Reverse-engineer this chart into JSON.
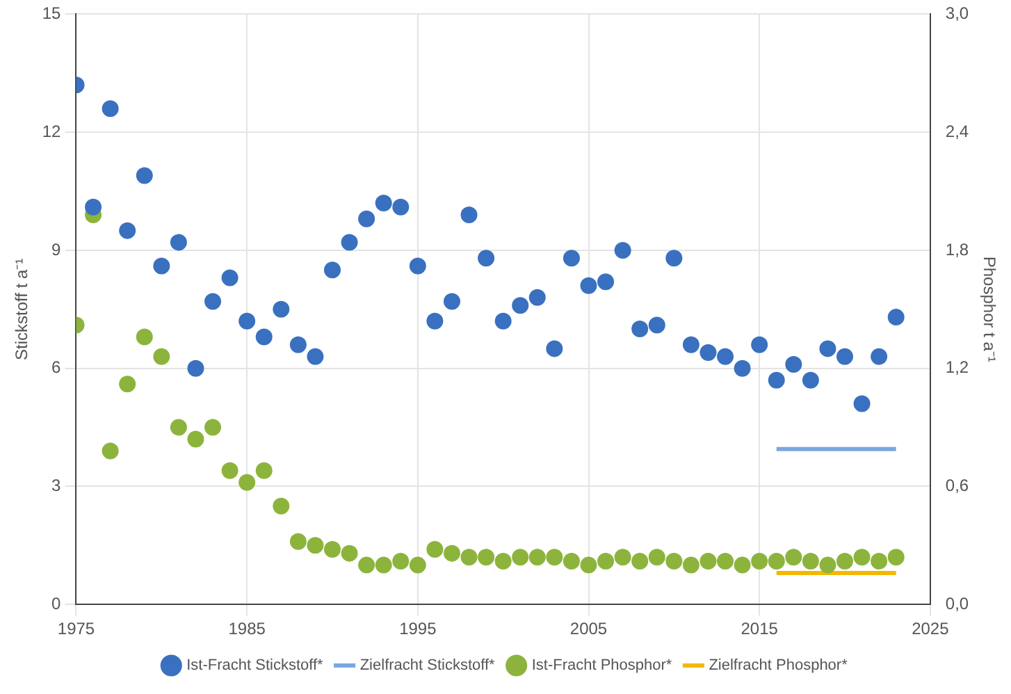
{
  "chart_data": {
    "type": "scatter",
    "ylabel": "Stickstoff t a⁻¹",
    "y2label": "Phosphor t a⁻¹",
    "xlim": [
      1975,
      2025
    ],
    "xticks": [
      1975,
      1985,
      1995,
      2005,
      2015,
      2025
    ],
    "ylim": [
      0,
      15
    ],
    "yticks": [
      0,
      3,
      6,
      9,
      12,
      15
    ],
    "y2lim": [
      0,
      3
    ],
    "y2ticks": [
      {
        "value": 0,
        "label": "0,0"
      },
      {
        "value": 0.6,
        "label": "0,6"
      },
      {
        "value": 1.2,
        "label": "1,2"
      },
      {
        "value": 1.8,
        "label": "1,8"
      },
      {
        "value": 2.4,
        "label": "2,4"
      },
      {
        "value": 3,
        "label": "3,0"
      }
    ],
    "grid": true,
    "legend": "bottom",
    "marker": "circle",
    "series": [
      {
        "name": "Ist-Fracht Stickstoff*",
        "color": "#3a70c0",
        "x": [
          1975,
          1976,
          1977,
          1978,
          1979,
          1980,
          1981,
          1982,
          1983,
          1984,
          1985,
          1986,
          1987,
          1988,
          1989,
          1990,
          1991,
          1992,
          1993,
          1994,
          1995,
          1996,
          1997,
          1998,
          1999,
          2000,
          2001,
          2002,
          2003,
          2004,
          2005,
          2006,
          2007,
          2008,
          2009,
          2010,
          2011,
          2012,
          2013,
          2014,
          2015,
          2016,
          2017,
          2018,
          2019,
          2020,
          2021,
          2022,
          2023
        ],
        "values": [
          13.2,
          10.1,
          12.6,
          9.5,
          10.9,
          8.6,
          9.2,
          6.0,
          7.7,
          8.3,
          7.2,
          6.8,
          7.5,
          6.6,
          6.3,
          8.5,
          9.2,
          9.8,
          10.2,
          10.1,
          8.6,
          7.2,
          7.7,
          9.9,
          8.8,
          7.2,
          7.6,
          7.8,
          6.5,
          8.8,
          8.1,
          8.2,
          9.0,
          7.0,
          7.1,
          8.8,
          6.6,
          6.4,
          6.3,
          6.0,
          6.6,
          5.7,
          6.1,
          5.7,
          6.5,
          6.3,
          5.1,
          6.3,
          7.3
        ]
      },
      {
        "name": "Zielfracht Stickstoff*",
        "type": "line",
        "marker": "none",
        "color": "#7aa7e0",
        "x": [
          2016,
          2023
        ],
        "values": [
          3.95,
          3.95
        ]
      },
      {
        "name": "Ist-Fracht Phosphor*",
        "color": "#8cb43c",
        "axis": "y2",
        "x": [
          1975,
          1976,
          1977,
          1978,
          1979,
          1980,
          1981,
          1982,
          1983,
          1984,
          1985,
          1986,
          1987,
          1988,
          1989,
          1990,
          1991,
          1992,
          1993,
          1994,
          1995,
          1996,
          1997,
          1998,
          1999,
          2000,
          2001,
          2002,
          2003,
          2004,
          2005,
          2006,
          2007,
          2008,
          2009,
          2010,
          2011,
          2012,
          2013,
          2014,
          2015,
          2016,
          2017,
          2018,
          2019,
          2020,
          2021,
          2022,
          2023
        ],
        "values": [
          1.42,
          1.98,
          0.78,
          1.12,
          1.36,
          1.26,
          0.9,
          0.84,
          0.9,
          0.68,
          0.62,
          0.68,
          0.5,
          0.32,
          0.3,
          0.28,
          0.26,
          0.2,
          0.2,
          0.22,
          0.2,
          0.28,
          0.26,
          0.24,
          0.24,
          0.22,
          0.24,
          0.24,
          0.24,
          0.22,
          0.2,
          0.22,
          0.24,
          0.22,
          0.24,
          0.22,
          0.2,
          0.22,
          0.22,
          0.2,
          0.22,
          0.22,
          0.24,
          0.22,
          0.2,
          0.22,
          0.24,
          0.22,
          0.24
        ]
      },
      {
        "name": "Zielfracht Phosphor*",
        "type": "line",
        "marker": "none",
        "color": "#f5b800",
        "axis": "y2",
        "x": [
          2016,
          2023
        ],
        "values": [
          0.16,
          0.16
        ]
      }
    ]
  }
}
